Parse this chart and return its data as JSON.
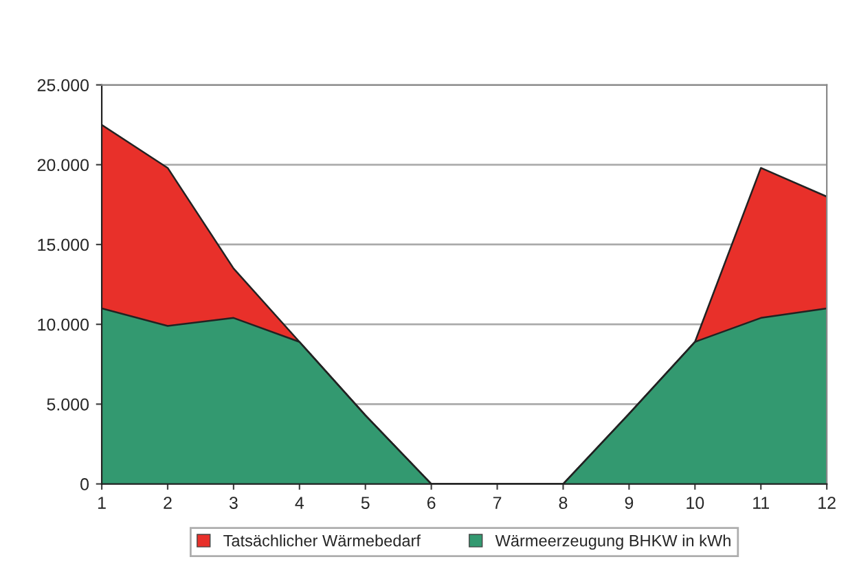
{
  "chart_data": {
    "type": "area",
    "stacked": true,
    "x": [
      1,
      2,
      3,
      4,
      5,
      6,
      7,
      8,
      9,
      10,
      11,
      12
    ],
    "series": [
      {
        "name": "Wärmeerzeugung BHKW in kWh",
        "color": "#339970",
        "values": [
          11000,
          9900,
          10400,
          8900,
          4300,
          0,
          0,
          0,
          4400,
          8900,
          10400,
          11000
        ]
      },
      {
        "name": "Tatsächlicher Wärmebedarf",
        "color": "#e8302a",
        "values": [
          11500,
          9900,
          3100,
          0,
          0,
          0,
          0,
          0,
          0,
          0,
          9400,
          7000
        ]
      }
    ],
    "xlim": [
      1,
      12
    ],
    "xticks": [
      1,
      2,
      3,
      4,
      5,
      6,
      7,
      8,
      9,
      10,
      11,
      12
    ],
    "ylim": [
      0,
      25000
    ],
    "yticks": [
      {
        "value": 0,
        "label": "0"
      },
      {
        "value": 5000,
        "label": "5.000"
      },
      {
        "value": 10000,
        "label": "10.000"
      },
      {
        "value": 15000,
        "label": "15.000"
      },
      {
        "value": 20000,
        "label": "20.000"
      },
      {
        "value": 25000,
        "label": "25.000"
      }
    ],
    "grid": "y",
    "legend": "bottom"
  }
}
